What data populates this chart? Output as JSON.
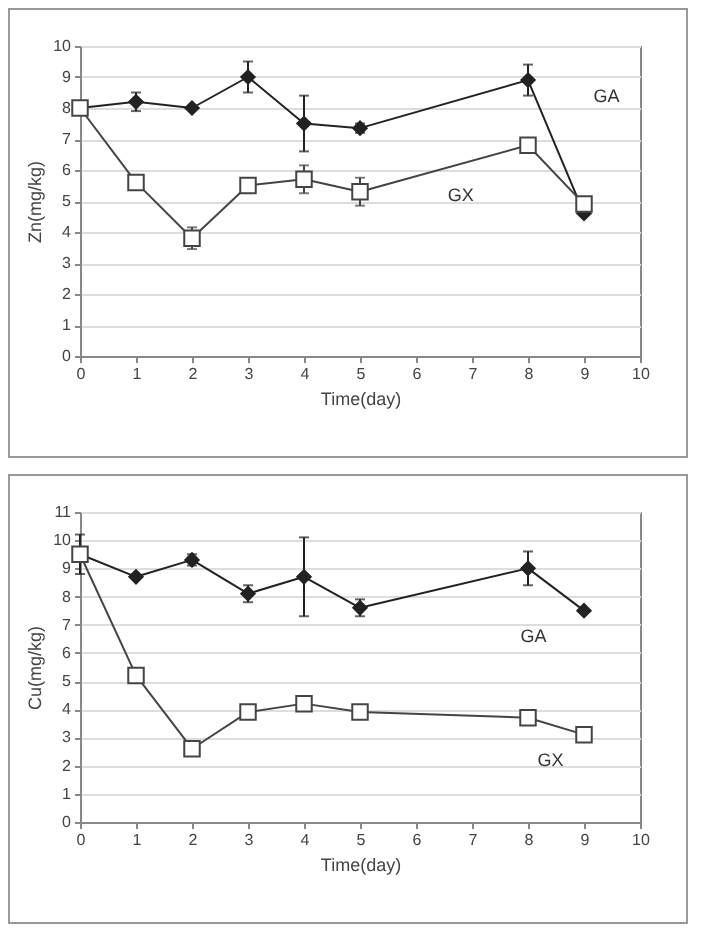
{
  "chart_data": [
    {
      "type": "line",
      "xlabel": "Time(day)",
      "ylabel": "Zn(mg/kg)",
      "x": [
        0,
        1,
        2,
        3,
        4,
        5,
        8,
        9
      ],
      "xlim": [
        0,
        10
      ],
      "xticks": [
        0,
        1,
        2,
        3,
        4,
        5,
        6,
        7,
        8,
        9,
        10
      ],
      "ylim": [
        0,
        10
      ],
      "yticks": [
        0,
        1,
        2,
        3,
        4,
        5,
        6,
        7,
        8,
        9,
        10
      ],
      "grid": "y",
      "series": [
        {
          "name": "GA",
          "color": "#222222",
          "marker": "diamond",
          "values": [
            8.0,
            8.2,
            8.0,
            9.0,
            7.5,
            7.35,
            8.9,
            4.6
          ],
          "errors": [
            null,
            0.3,
            null,
            0.5,
            0.9,
            0.15,
            0.5,
            null
          ]
        },
        {
          "name": "GX",
          "color": "#444444",
          "marker": "square",
          "values": [
            8.0,
            5.6,
            3.8,
            5.5,
            5.7,
            5.3,
            6.8,
            4.9
          ],
          "errors": [
            null,
            null,
            0.35,
            null,
            0.45,
            0.45,
            null,
            null
          ]
        }
      ],
      "tick_labels": null
    },
    {
      "type": "line",
      "xlabel": "Time(day)",
      "ylabel": "Cu(mg/kg)",
      "x": [
        0,
        1,
        2,
        3,
        4,
        5,
        8,
        9
      ],
      "xlim": [
        0,
        10
      ],
      "xticks": [
        0,
        1,
        2,
        3,
        4,
        5,
        6,
        7,
        8,
        9,
        10
      ],
      "ylim": [
        0,
        11
      ],
      "yticks": [
        0,
        1,
        2,
        3,
        4,
        5,
        6,
        7,
        8,
        9,
        10,
        11
      ],
      "grid": "y",
      "series": [
        {
          "name": "GA",
          "color": "#222222",
          "marker": "diamond",
          "values": [
            9.5,
            8.7,
            9.3,
            8.1,
            8.7,
            7.6,
            9.0,
            7.5
          ],
          "errors": [
            0.7,
            null,
            0.2,
            0.3,
            1.4,
            0.3,
            0.6,
            null
          ]
        },
        {
          "name": "GX",
          "color": "#444444",
          "marker": "square",
          "values": [
            9.5,
            5.2,
            2.6,
            3.9,
            4.2,
            3.9,
            3.7,
            3.1
          ],
          "errors": [
            null,
            null,
            0.2,
            null,
            0.15,
            0.15,
            null,
            null
          ]
        }
      ],
      "tick_labels": null
    }
  ]
}
